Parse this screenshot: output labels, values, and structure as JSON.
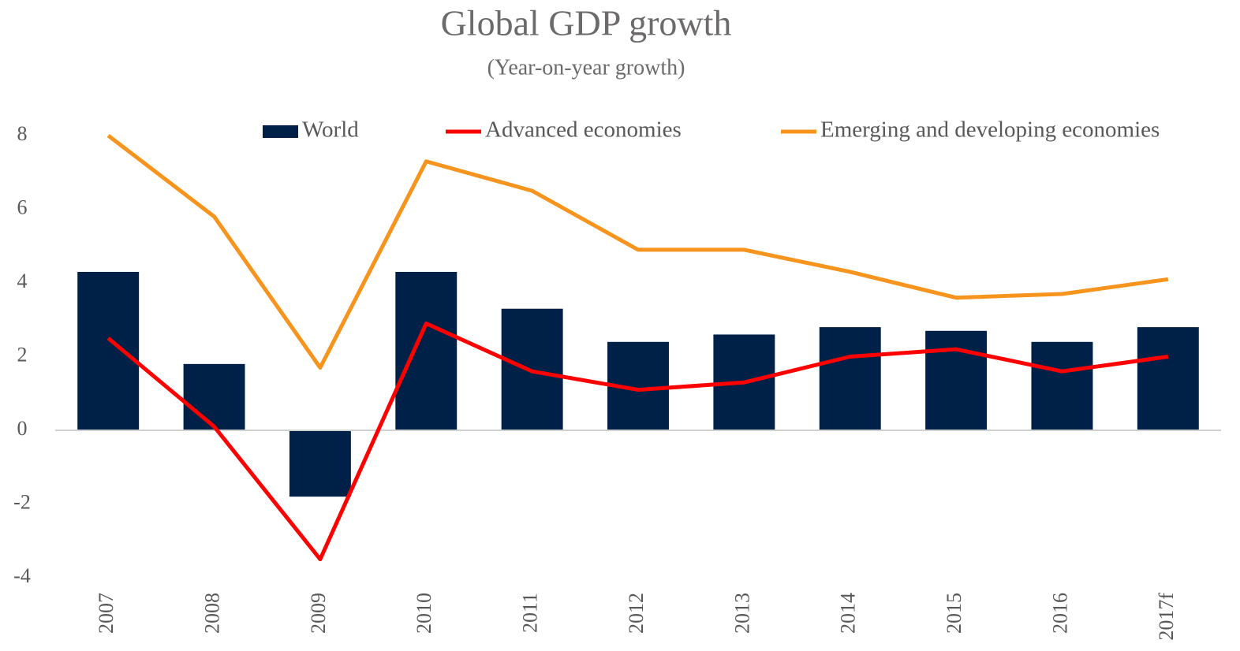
{
  "chart_data": {
    "type": "bar",
    "title": "Global GDP growth",
    "subtitle": "(Year-on-year growth)",
    "categories": [
      "2007",
      "2008",
      "2009",
      "2010",
      "2011",
      "2012",
      "2013",
      "2014",
      "2015",
      "2016",
      "2017f"
    ],
    "series": [
      {
        "name": "World",
        "type": "bar",
        "color": "#002147",
        "values": [
          4.3,
          1.8,
          -1.8,
          4.3,
          3.3,
          2.4,
          2.6,
          2.8,
          2.7,
          2.4,
          2.8
        ]
      },
      {
        "name": "Advanced economies",
        "type": "line",
        "color": "#ff0000",
        "values": [
          2.5,
          0.1,
          -3.5,
          2.9,
          1.6,
          1.1,
          1.3,
          2.0,
          2.2,
          1.6,
          2.0
        ]
      },
      {
        "name": "Emerging and developing economies",
        "type": "line",
        "color": "#f7941d",
        "values": [
          8.0,
          5.8,
          1.7,
          7.3,
          6.5,
          4.9,
          4.9,
          4.3,
          3.6,
          3.7,
          4.1
        ]
      }
    ],
    "ylim": [
      -4,
      8
    ],
    "yticks": [
      -4,
      -2,
      0,
      2,
      4,
      6,
      8
    ],
    "grid": false,
    "legend": "top"
  }
}
